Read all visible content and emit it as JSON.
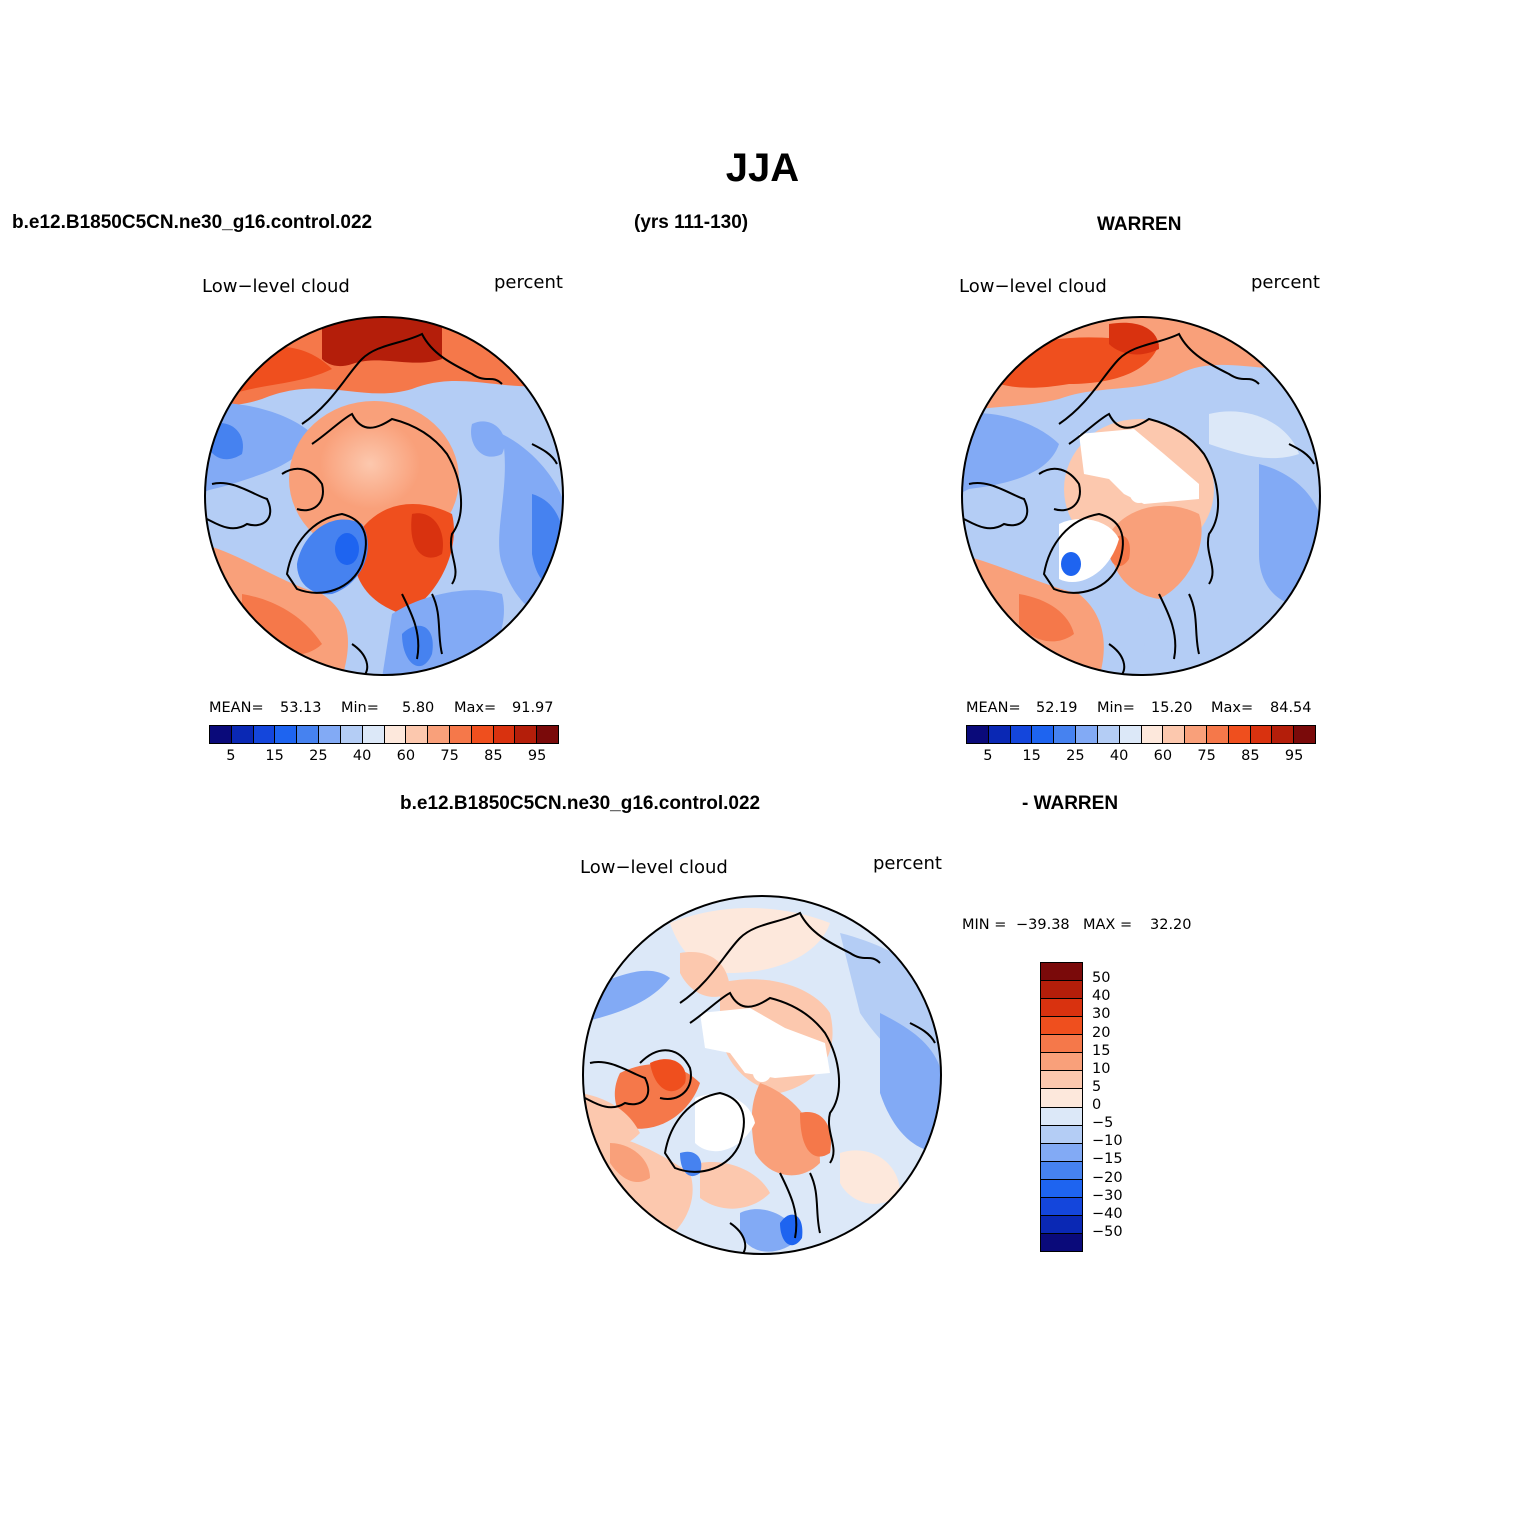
{
  "title": "JJA",
  "header": {
    "case": "b.e12.B1850C5CN.ne30_g16.control.022",
    "years": "(yrs 111-130)",
    "obs": "WARREN"
  },
  "panels": [
    {
      "label": "Low−level cloud",
      "units": "percent",
      "stats": {
        "mean_lbl": "MEAN=",
        "mean": "53.13",
        "min_lbl": "Min=",
        "min": "5.80",
        "max_lbl": "Max=",
        "max": "91.97"
      }
    },
    {
      "label": "Low−level cloud",
      "units": "percent",
      "stats": {
        "mean_lbl": "MEAN=",
        "mean": "52.19",
        "min_lbl": "Min=",
        "min": "15.20",
        "max_lbl": "Max=",
        "max": "84.54"
      }
    },
    {
      "label": "Low−level cloud",
      "units": "percent",
      "stats": {
        "min_lbl": "MIN =",
        "min": "−39.38",
        "max_lbl": "MAX =",
        "max": "32.20"
      }
    }
  ],
  "diff_header": {
    "left": "b.e12.B1850C5CN.ne30_g16.control.022",
    "right": "- WARREN"
  },
  "colorbar_abs": {
    "ticks": [
      "5",
      "15",
      "25",
      "40",
      "60",
      "75",
      "85",
      "95"
    ],
    "colors": [
      "#0a0a7a",
      "#0a28b4",
      "#1446dc",
      "#1e64f0",
      "#4682f0",
      "#82aaf5",
      "#b4cdf5",
      "#dce8f8",
      "#fde8dc",
      "#fcc8ae",
      "#f9a07a",
      "#f5784a",
      "#ef4f1e",
      "#d9320f",
      "#b41e0a",
      "#7a0a0a"
    ]
  },
  "colorbar_diff": {
    "labels": [
      "50",
      "40",
      "30",
      "20",
      "15",
      "10",
      "5",
      "0",
      "−5",
      "−10",
      "−15",
      "−20",
      "−30",
      "−40",
      "−50"
    ],
    "colors": [
      "#7a0a0a",
      "#b41e0a",
      "#d9320f",
      "#ef4f1e",
      "#f5784a",
      "#f9a07a",
      "#fcc8ae",
      "#fde8dc",
      "#dce8f8",
      "#b4cdf5",
      "#82aaf5",
      "#4682f0",
      "#1e64f0",
      "#1446dc",
      "#0a28b4",
      "#0a0a7a"
    ]
  }
}
